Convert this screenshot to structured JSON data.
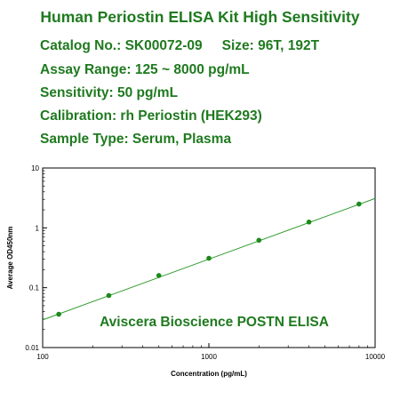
{
  "header": {
    "title": "Human Periostin ELISA Kit High Sensitivity",
    "catalog": "Catalog No.: SK00072-09",
    "size": "Size: 96T, 192T",
    "assay_range": "Assay Range: 125 ~ 8000 pg/mL",
    "sensitivity": "Sensitivity: 50 pg/mL",
    "calibration": "Calibration: rh Periostin (HEK293)",
    "sample_type": "Sample Type: Serum, Plasma"
  },
  "colors": {
    "text_green": "#1f7a1f",
    "point_green": "#1a8a1a",
    "line_green": "#2e9a2e"
  },
  "chart_data": {
    "type": "scatter",
    "xlabel": "Concentration (pg/mL)",
    "ylabel": "Average OD450nm",
    "x_scale": "log",
    "y_scale": "log",
    "xlim": [
      100,
      10000
    ],
    "ylim": [
      0.01,
      10
    ],
    "x_ticks": [
      "100",
      "1000",
      "10000"
    ],
    "y_ticks": [
      "0.01",
      "0.1",
      "1",
      "10"
    ],
    "annotation": "Aviscera Bioscience POSTN ELISA",
    "points": [
      {
        "x": 125,
        "y": 0.036
      },
      {
        "x": 250,
        "y": 0.074
      },
      {
        "x": 500,
        "y": 0.16
      },
      {
        "x": 1000,
        "y": 0.31
      },
      {
        "x": 2000,
        "y": 0.62
      },
      {
        "x": 4000,
        "y": 1.25
      },
      {
        "x": 8000,
        "y": 2.5
      }
    ],
    "fit_line": [
      {
        "x": 100,
        "y": 0.029
      },
      {
        "x": 10000,
        "y": 3.1
      }
    ],
    "grid": false
  }
}
